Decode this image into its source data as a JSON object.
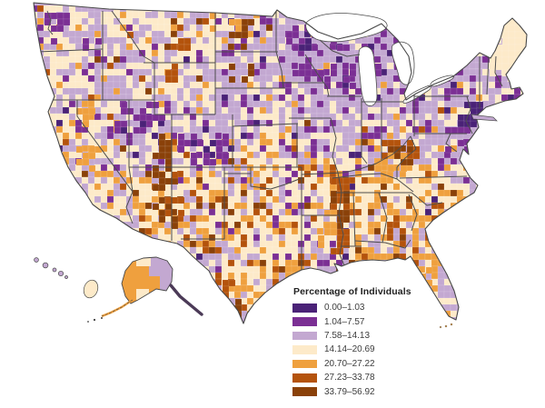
{
  "map": {
    "kind": "choropleth",
    "legend": {
      "title": "Percentage of Individuals",
      "classes": [
        {
          "label": "0.00–1.03",
          "color": "#4a2277"
        },
        {
          "label": "1.04–7.57",
          "color": "#7b2f94"
        },
        {
          "label": "7.58–14.13",
          "color": "#c3a8d1"
        },
        {
          "label": "14.14–20.69",
          "color": "#fdeac9"
        },
        {
          "label": "20.70–27.22",
          "color": "#efa03e"
        },
        {
          "label": "27.23–33.78",
          "color": "#b4530c"
        },
        {
          "label": "33.79–56.92",
          "color": "#8a4109"
        }
      ]
    },
    "border_color": "#4d4d4d",
    "water_color": "#ffffff"
  }
}
